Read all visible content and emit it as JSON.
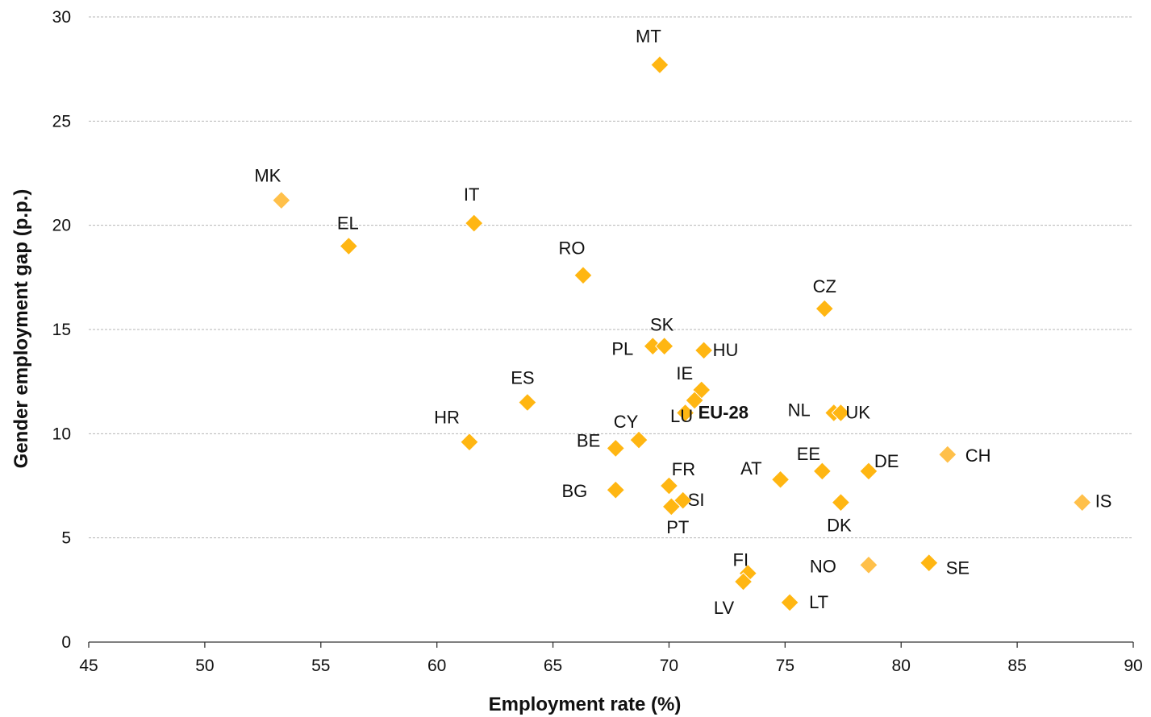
{
  "chart_data": {
    "type": "scatter",
    "xlabel": "Employment rate (%)",
    "ylabel": "Gender employment gap (p.p.)",
    "xlim": [
      45,
      90
    ],
    "ylim": [
      0,
      30
    ],
    "x_ticks": [
      45,
      50,
      55,
      60,
      65,
      70,
      75,
      80,
      85,
      90
    ],
    "y_ticks": [
      0,
      5,
      10,
      15,
      20,
      25,
      30
    ],
    "grid": "horizontal-dashed",
    "legend": "none",
    "colors": {
      "eu_member": "#FFB612",
      "non_eu": "#FFC04A"
    },
    "points": [
      {
        "label": "MT",
        "x": 69.6,
        "y": 27.7,
        "group": "eu_member"
      },
      {
        "label": "MK",
        "x": 53.3,
        "y": 21.2,
        "group": "non_eu"
      },
      {
        "label": "EL",
        "x": 56.2,
        "y": 19.0,
        "group": "eu_member"
      },
      {
        "label": "IT",
        "x": 61.6,
        "y": 20.1,
        "group": "eu_member"
      },
      {
        "label": "RO",
        "x": 66.3,
        "y": 17.6,
        "group": "eu_member"
      },
      {
        "label": "CZ",
        "x": 76.7,
        "y": 16.0,
        "group": "eu_member"
      },
      {
        "label": "PL",
        "x": 69.3,
        "y": 14.2,
        "group": "eu_member"
      },
      {
        "label": "SK",
        "x": 69.8,
        "y": 14.2,
        "group": "eu_member"
      },
      {
        "label": "HU",
        "x": 71.5,
        "y": 14.0,
        "group": "eu_member"
      },
      {
        "label": "IE",
        "x": 71.4,
        "y": 12.1,
        "group": "eu_member"
      },
      {
        "label": "EU-28",
        "x": 70.7,
        "y": 11.0,
        "group": "eu_member",
        "bold": true
      },
      {
        "label": "LU",
        "x": 71.1,
        "y": 11.6,
        "group": "eu_member"
      },
      {
        "label": "ES",
        "x": 63.9,
        "y": 11.5,
        "group": "eu_member"
      },
      {
        "label": "NL",
        "x": 77.1,
        "y": 11.0,
        "group": "eu_member"
      },
      {
        "label": "UK",
        "x": 77.4,
        "y": 11.0,
        "group": "eu_member"
      },
      {
        "label": "HR",
        "x": 61.4,
        "y": 9.6,
        "group": "eu_member"
      },
      {
        "label": "CY",
        "x": 68.7,
        "y": 9.7,
        "group": "eu_member"
      },
      {
        "label": "BE",
        "x": 67.7,
        "y": 9.3,
        "group": "eu_member"
      },
      {
        "label": "CH",
        "x": 82.0,
        "y": 9.0,
        "group": "non_eu"
      },
      {
        "label": "FR",
        "x": 70.0,
        "y": 7.5,
        "group": "eu_member"
      },
      {
        "label": "AT",
        "x": 74.8,
        "y": 7.8,
        "group": "eu_member"
      },
      {
        "label": "EE",
        "x": 76.6,
        "y": 8.2,
        "group": "eu_member"
      },
      {
        "label": "DE",
        "x": 78.6,
        "y": 8.2,
        "group": "eu_member"
      },
      {
        "label": "BG",
        "x": 67.7,
        "y": 7.3,
        "group": "eu_member"
      },
      {
        "label": "SI",
        "x": 70.6,
        "y": 6.8,
        "group": "eu_member"
      },
      {
        "label": "PT",
        "x": 70.1,
        "y": 6.5,
        "group": "eu_member"
      },
      {
        "label": "DK",
        "x": 77.4,
        "y": 6.7,
        "group": "eu_member"
      },
      {
        "label": "IS",
        "x": 87.8,
        "y": 6.7,
        "group": "non_eu"
      },
      {
        "label": "FI",
        "x": 73.4,
        "y": 3.3,
        "group": "eu_member"
      },
      {
        "label": "LV",
        "x": 73.2,
        "y": 2.9,
        "group": "eu_member"
      },
      {
        "label": "LT",
        "x": 75.2,
        "y": 1.9,
        "group": "eu_member"
      },
      {
        "label": "NO",
        "x": 78.6,
        "y": 3.7,
        "group": "non_eu"
      },
      {
        "label": "SE",
        "x": 81.2,
        "y": 3.8,
        "group": "eu_member"
      }
    ]
  }
}
